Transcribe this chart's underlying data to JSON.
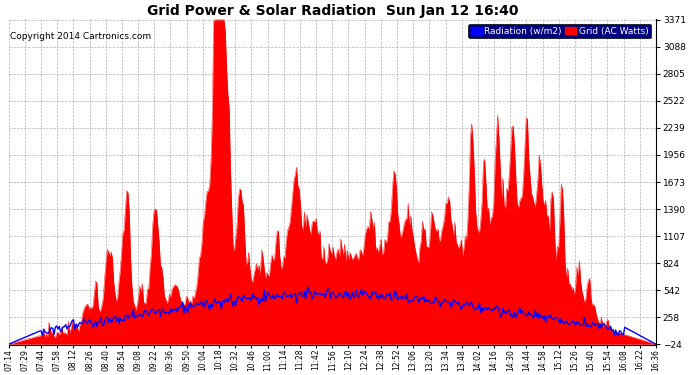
{
  "title": "Grid Power & Solar Radiation  Sun Jan 12 16:40",
  "copyright": "Copyright 2014 Cartronics.com",
  "legend_labels": [
    "Radiation (w/m2)",
    "Grid (AC Watts)"
  ],
  "legend_colors": [
    "#0000ff",
    "#ff0000"
  ],
  "yticks": [
    3371.2,
    3088.2,
    2805.2,
    2522.3,
    2239.3,
    1956.3,
    1673.3,
    1390.4,
    1107.4,
    824.4,
    541.5,
    258.5,
    -24.5
  ],
  "ymin": -24.5,
  "ymax": 3371.2,
  "background_color": "#ffffff",
  "plot_bg_color": "#ffffff",
  "grid_color": "#c8c8c8",
  "title_color": "#000000",
  "xtick_labels": [
    "07:14",
    "07:29",
    "07:44",
    "07:58",
    "08:12",
    "08:26",
    "08:40",
    "08:54",
    "09:08",
    "09:22",
    "09:36",
    "09:50",
    "10:04",
    "10:18",
    "10:32",
    "10:46",
    "11:00",
    "11:14",
    "11:28",
    "11:42",
    "11:56",
    "12:10",
    "12:24",
    "12:38",
    "12:52",
    "13:06",
    "13:20",
    "13:34",
    "13:48",
    "14:02",
    "14:16",
    "14:30",
    "14:44",
    "14:58",
    "15:12",
    "15:26",
    "15:40",
    "15:54",
    "16:08",
    "16:22",
    "16:36"
  ]
}
